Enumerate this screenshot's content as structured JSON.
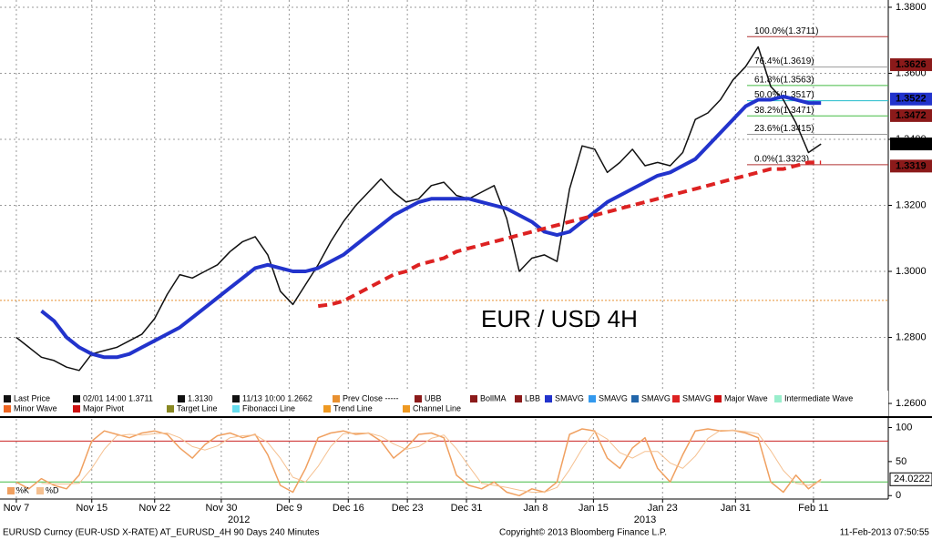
{
  "chart_data": [
    {
      "type": "line",
      "annotation": "EUR / USD 4H",
      "x": [
        0,
        1,
        2,
        3,
        4,
        5,
        6,
        7,
        8,
        9,
        10,
        11,
        12,
        13,
        14,
        15,
        16,
        17,
        18,
        19,
        20,
        21,
        22,
        23,
        24,
        25,
        26,
        27,
        28,
        29,
        30,
        31,
        32,
        33,
        34,
        35,
        36,
        37,
        38,
        39,
        40,
        41,
        42,
        43,
        44,
        45,
        46,
        47,
        48,
        49,
        50,
        51,
        52,
        53,
        54,
        55,
        56,
        57,
        58,
        59,
        60,
        61,
        62,
        63,
        64
      ],
      "xlim": [
        -1.3,
        69.35
      ],
      "xticks": [
        {
          "value": 0,
          "label": "Nov 7"
        },
        {
          "value": 6,
          "label": "Nov 15"
        },
        {
          "value": 11,
          "label": "Nov 22"
        },
        {
          "value": 16.3,
          "label": "Nov 30"
        },
        {
          "value": 21.7,
          "label": "Dec 9"
        },
        {
          "value": 26.4,
          "label": "Dec 16"
        },
        {
          "value": 31.1,
          "label": "Dec 23"
        },
        {
          "value": 35.8,
          "label": "Dec 31"
        },
        {
          "value": 41.3,
          "label": "Jan 8"
        },
        {
          "value": 45.9,
          "label": "Jan 15"
        },
        {
          "value": 51.4,
          "label": "Jan 23"
        },
        {
          "value": 57.2,
          "label": "Jan 31"
        },
        {
          "value": 63.4,
          "label": "Feb 11"
        }
      ],
      "x_year_labels": [
        {
          "value": 17.7,
          "label": "2012"
        },
        {
          "value": 50,
          "label": "2013"
        }
      ],
      "ylim": [
        1.2567,
        1.3822
      ],
      "yticks": [
        {
          "value": 1.26,
          "label": "1.2600"
        },
        {
          "value": 1.28,
          "label": "1.2800"
        },
        {
          "value": 1.3,
          "label": "1.3000"
        },
        {
          "value": 1.32,
          "label": "1.3200"
        },
        {
          "value": 1.34,
          "label": "1.3400"
        },
        {
          "value": 1.36,
          "label": "1.3600"
        },
        {
          "value": 1.38,
          "label": "1.3800"
        }
      ],
      "grid": true,
      "series": [
        {
          "name": "Last Price",
          "color": "#111111",
          "width": 1.5,
          "dash": false,
          "values": [
            1.28,
            1.277,
            1.274,
            1.273,
            1.271,
            1.27,
            1.275,
            1.276,
            1.277,
            1.279,
            1.281,
            1.2857,
            1.293,
            1.299,
            1.298,
            1.3,
            1.302,
            1.306,
            1.309,
            1.3105,
            1.305,
            1.294,
            1.29,
            1.296,
            1.302,
            1.309,
            1.315,
            1.32,
            1.324,
            1.328,
            1.324,
            1.321,
            1.322,
            1.326,
            1.327,
            1.323,
            1.322,
            1.324,
            1.326,
            1.316,
            1.3,
            1.304,
            1.305,
            1.303,
            1.325,
            1.338,
            1.337,
            1.33,
            1.333,
            1.337,
            1.332,
            1.333,
            1.332,
            1.336,
            1.346,
            1.348,
            1.352,
            1.358,
            1.362,
            1.368,
            1.356,
            1.352,
            1.345,
            1.336,
            1.3386
          ]
        },
        {
          "name": "SMAVG",
          "color": "#2233cc",
          "width": 4,
          "dash": false,
          "values": [
            null,
            null,
            1.288,
            1.285,
            1.28,
            1.277,
            1.275,
            1.274,
            1.274,
            1.275,
            1.277,
            1.279,
            1.281,
            1.283,
            1.286,
            1.289,
            1.292,
            1.295,
            1.298,
            1.301,
            1.302,
            1.301,
            1.3,
            1.3,
            1.301,
            1.303,
            1.305,
            1.308,
            1.311,
            1.314,
            1.317,
            1.319,
            1.321,
            1.322,
            1.322,
            1.322,
            1.322,
            1.321,
            1.32,
            1.319,
            1.317,
            1.315,
            1.312,
            1.311,
            1.312,
            1.315,
            1.318,
            1.321,
            1.323,
            1.325,
            1.327,
            1.329,
            1.33,
            1.332,
            1.334,
            1.338,
            1.342,
            1.346,
            1.35,
            1.352,
            1.352,
            1.353,
            1.352,
            1.351,
            1.351
          ]
        },
        {
          "name": "SMAVG",
          "color": "#dd2222",
          "width": 4,
          "dash": true,
          "values": [
            null,
            null,
            null,
            null,
            null,
            null,
            null,
            null,
            null,
            null,
            null,
            null,
            null,
            null,
            null,
            null,
            null,
            null,
            null,
            null,
            null,
            null,
            null,
            null,
            1.2895,
            1.29,
            1.291,
            1.293,
            1.295,
            1.297,
            1.299,
            1.3,
            1.302,
            1.303,
            1.304,
            1.306,
            1.307,
            1.308,
            1.309,
            1.31,
            1.311,
            1.312,
            1.313,
            1.314,
            1.315,
            1.316,
            1.317,
            1.318,
            1.319,
            1.32,
            1.321,
            1.322,
            1.323,
            1.324,
            1.325,
            1.326,
            1.327,
            1.328,
            1.329,
            1.33,
            1.331,
            1.331,
            1.332,
            1.333,
            1.333
          ]
        }
      ],
      "reference_line": {
        "value": 1.2912,
        "color": "#e89030"
      },
      "fibonacci": [
        {
          "label": "100.0%(1.3711)",
          "value": 1.3711,
          "color": "#b03030"
        },
        {
          "label": "76.4%(1.3619)",
          "value": 1.3619,
          "color": "#999999"
        },
        {
          "label": "61.8%(1.3563)",
          "value": 1.3563,
          "color": "#44bb44"
        },
        {
          "label": "50.0%(1.3517)",
          "value": 1.3517,
          "color": "#22bbcc"
        },
        {
          "label": "38.2%(1.3471)",
          "value": 1.3471,
          "color": "#44bb44"
        },
        {
          "label": "23.6%(1.3415)",
          "value": 1.3415,
          "color": "#999999"
        },
        {
          "label": "0.0%(1.3323)",
          "value": 1.3323,
          "color": "#b03030"
        }
      ],
      "price_tags": [
        {
          "value": 1.3626,
          "color": "#8b1a1a"
        },
        {
          "value": 1.3522,
          "color": "#2233cc"
        },
        {
          "value": 1.3472,
          "color": "#8b1a1a"
        },
        {
          "value": 1.3386,
          "color": "#000000"
        },
        {
          "value": 1.3319,
          "color": "#8b1a1a"
        }
      ]
    },
    {
      "type": "line",
      "x": [
        0,
        1,
        2,
        3,
        4,
        5,
        6,
        7,
        8,
        9,
        10,
        11,
        12,
        13,
        14,
        15,
        16,
        17,
        18,
        19,
        20,
        21,
        22,
        23,
        24,
        25,
        26,
        27,
        28,
        29,
        30,
        31,
        32,
        33,
        34,
        35,
        36,
        37,
        38,
        39,
        40,
        41,
        42,
        43,
        44,
        45,
        46,
        47,
        48,
        49,
        50,
        51,
        52,
        53,
        54,
        55,
        56,
        57,
        58,
        59,
        60,
        61,
        62,
        63,
        64
      ],
      "xlim": [
        -1.3,
        69.35
      ],
      "ylim": [
        -5,
        110
      ],
      "yticks": [
        0,
        50,
        100
      ],
      "levels": [
        {
          "value": 80,
          "color": "#cc2222"
        },
        {
          "value": 20,
          "color": "#44bb44"
        }
      ],
      "series": [
        {
          "name": "%K",
          "color": "#f0a060",
          "width": 1.5,
          "dash": false,
          "values": [
            20,
            10,
            25,
            15,
            10,
            30,
            80,
            95,
            90,
            85,
            92,
            95,
            90,
            70,
            55,
            75,
            88,
            92,
            85,
            90,
            60,
            15,
            5,
            40,
            85,
            92,
            95,
            90,
            92,
            80,
            55,
            70,
            90,
            92,
            85,
            30,
            15,
            10,
            20,
            5,
            0,
            10,
            5,
            20,
            90,
            98,
            95,
            55,
            40,
            70,
            85,
            40,
            20,
            60,
            95,
            98,
            95,
            96,
            92,
            85,
            20,
            5,
            30,
            10,
            24.0222
          ]
        },
        {
          "name": "%D",
          "color": "#f5c090",
          "width": 1,
          "dash": false,
          "values": [
            null,
            null,
            18,
            17,
            17,
            18,
            40,
            68,
            88,
            90,
            89,
            91,
            92,
            85,
            72,
            67,
            73,
            85,
            88,
            89,
            78,
            55,
            27,
            20,
            43,
            72,
            91,
            92,
            92,
            87,
            76,
            68,
            72,
            84,
            89,
            69,
            43,
            18,
            15,
            12,
            8,
            5,
            5,
            12,
            38,
            69,
            94,
            83,
            63,
            55,
            65,
            65,
            48,
            40,
            58,
            84,
            96,
            96,
            94,
            91,
            66,
            37,
            18,
            15,
            21
          ]
        }
      ],
      "last_tag": 24.0222
    }
  ],
  "legend": [
    {
      "label": "Last Price",
      "color": "#111111"
    },
    {
      "label": "02/01 14:00 1.3711",
      "color": "#111111"
    },
    {
      "label": "1.3130",
      "color": "#111111"
    },
    {
      "label": "11/13 10:00 1.2662",
      "color": "#111111"
    },
    {
      "label": "Prev Close -----",
      "color": "#e89030"
    },
    {
      "label": "UBB",
      "color": "#8b1a1a"
    },
    {
      "label": "BollMA",
      "color": "#8b1a1a"
    },
    {
      "label": "LBB",
      "color": "#8b1a1a"
    },
    {
      "label": "SMAVG",
      "color": "#2233cc"
    },
    {
      "label": "SMAVG",
      "color": "#3399ee"
    },
    {
      "label": "SMAVG",
      "color": "#2266aa"
    },
    {
      "label": "SMAVG",
      "color": "#dd2222"
    },
    {
      "label": "Major Wave",
      "color": "#cc1111"
    },
    {
      "label": "Intermediate Wave",
      "color": "#99eecc"
    },
    {
      "label": "Minor Wave",
      "color": "#ee6622"
    },
    {
      "label": "Major Pivot",
      "color": "#cc1111"
    },
    {
      "label": "Target Line",
      "color": "#888822"
    },
    {
      "label": "Fibonacci Line",
      "color": "#66ddee"
    },
    {
      "label": "Trend Line",
      "color": "#ee9922"
    },
    {
      "label": "Channel Line",
      "color": "#ee9922"
    }
  ],
  "footer": {
    "left": "EURUSD Curncy (EUR-USD X-RATE) AT_EURUSD_4H 90 Days 240 Minutes",
    "center": "Copyright© 2013 Bloomberg Finance L.P.",
    "right": "11-Feb-2013 07:50:55"
  }
}
